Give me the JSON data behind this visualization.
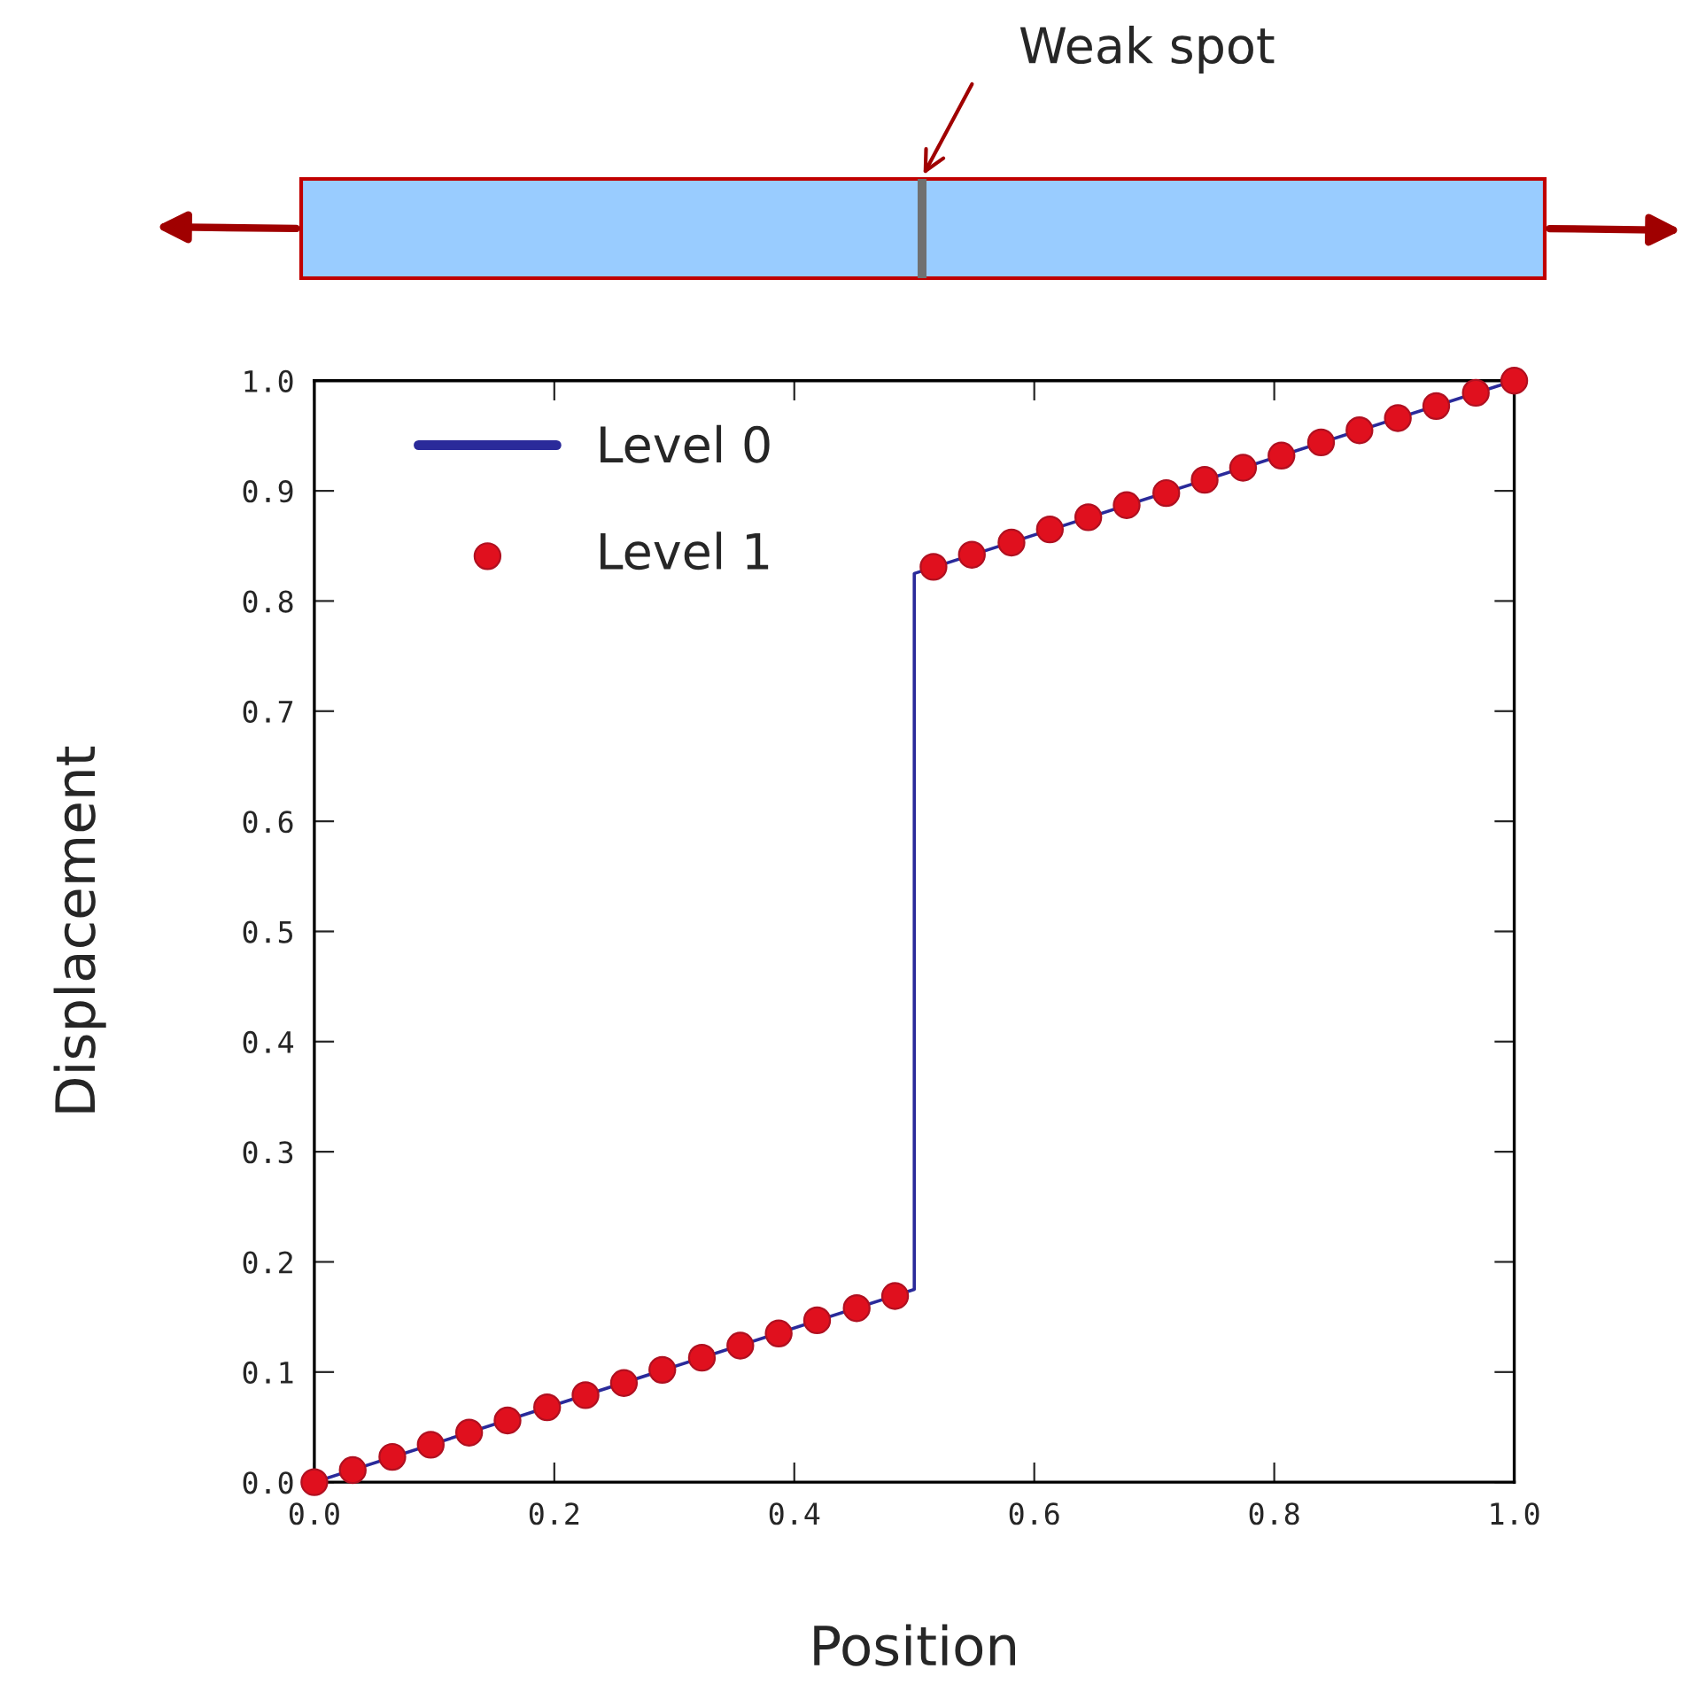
{
  "chart_data": {
    "type": "line",
    "xlabel": "Position",
    "ylabel": "Displacement",
    "annotations": [
      "Weak spot"
    ],
    "series": [
      {
        "name": "Level 0",
        "color": "#2a2a9a",
        "x": [
          0,
          0.5,
          0.5,
          1.0
        ],
        "values": [
          0,
          0.175,
          0.825,
          1.0
        ]
      },
      {
        "name": "Level 1",
        "type": "scatter",
        "marker": "circle",
        "color": "#e0101e",
        "x": [
          0,
          0.032,
          0.065,
          0.097,
          0.129,
          0.161,
          0.194,
          0.226,
          0.258,
          0.29,
          0.323,
          0.355,
          0.387,
          0.419,
          0.452,
          0.484,
          0.516,
          0.548,
          0.581,
          0.613,
          0.645,
          0.677,
          0.71,
          0.742,
          0.774,
          0.806,
          0.839,
          0.871,
          0.903,
          0.935,
          0.968,
          1.0
        ],
        "values": [
          0,
          0.011,
          0.023,
          0.034,
          0.045,
          0.056,
          0.068,
          0.079,
          0.09,
          0.102,
          0.113,
          0.124,
          0.135,
          0.147,
          0.158,
          0.169,
          0.831,
          0.842,
          0.853,
          0.865,
          0.876,
          0.887,
          0.898,
          0.91,
          0.921,
          0.932,
          0.944,
          0.955,
          0.966,
          0.977,
          0.989,
          1.0
        ]
      }
    ],
    "xlim": [
      0,
      1.0
    ],
    "ylim": [
      0,
      1.0
    ],
    "xticks": [
      {
        "value": 0,
        "label": "0.0"
      },
      0.2,
      0.4,
      0.6,
      0.8,
      {
        "value": 1.0,
        "label": "1.0"
      }
    ],
    "yticks": [
      {
        "value": 0,
        "label": "0.0"
      },
      0.1,
      0.2,
      0.3,
      0.4,
      0.5,
      0.6,
      0.7,
      0.8,
      0.9,
      {
        "value": 1.0,
        "label": "1.0"
      }
    ],
    "grid": false,
    "legend": "top left"
  }
}
